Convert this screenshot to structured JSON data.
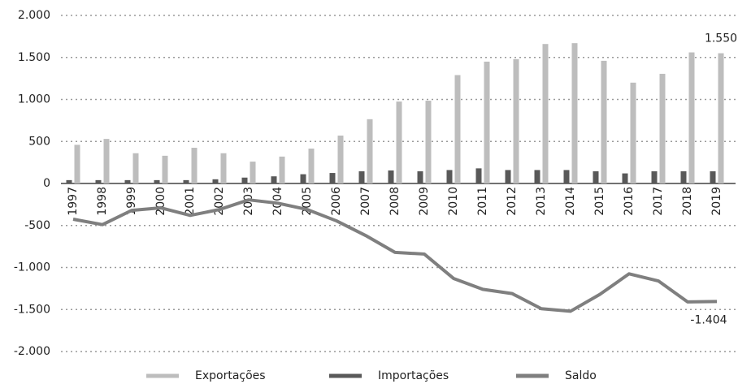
{
  "chart_data": {
    "type": "bar-line",
    "categories": [
      "1997",
      "1998",
      "1999",
      "2000",
      "2001",
      "2002",
      "2003",
      "2004",
      "2005",
      "2006",
      "2007",
      "2008",
      "2009",
      "2010",
      "2011",
      "2012",
      "2013",
      "2014",
      "2015",
      "2016",
      "2017",
      "2018",
      "2019"
    ],
    "series": [
      {
        "name": "Exportações",
        "type": "bar",
        "color": "#bdbdbd",
        "values": [
          460,
          530,
          360,
          330,
          425,
          360,
          260,
          320,
          415,
          570,
          765,
          975,
          985,
          1290,
          1450,
          1480,
          1660,
          1670,
          1460,
          1200,
          1305,
          1560,
          1550
        ],
        "value_labels": [
          null,
          null,
          null,
          null,
          null,
          null,
          null,
          null,
          null,
          null,
          null,
          null,
          null,
          null,
          null,
          null,
          null,
          null,
          null,
          null,
          null,
          null,
          "1.550"
        ]
      },
      {
        "name": "Importações",
        "type": "bar",
        "color": "#595959",
        "values": [
          40,
          40,
          40,
          40,
          40,
          50,
          70,
          85,
          110,
          125,
          145,
          155,
          145,
          160,
          180,
          160,
          160,
          160,
          145,
          120,
          145,
          145,
          145
        ]
      },
      {
        "name": "Saldo",
        "type": "line",
        "color": "#7f7f7f",
        "values": [
          -425,
          -490,
          -320,
          -290,
          -380,
          -310,
          -195,
          -235,
          -310,
          -445,
          -620,
          -820,
          -840,
          -1130,
          -1260,
          -1310,
          -1490,
          -1520,
          -1320,
          -1075,
          -1160,
          -1410,
          -1404
        ],
        "value_labels": [
          null,
          null,
          null,
          null,
          null,
          null,
          null,
          null,
          null,
          null,
          null,
          null,
          null,
          null,
          null,
          null,
          null,
          null,
          null,
          null,
          null,
          null,
          "-1.404"
        ]
      }
    ],
    "ylim": [
      -2000,
      2000
    ],
    "yticks": [
      {
        "value": 2000,
        "label": "2.000"
      },
      {
        "value": 1500,
        "label": "1.500"
      },
      {
        "value": 1000,
        "label": "1.000"
      },
      500,
      0,
      -500,
      {
        "value": -1000,
        "label": "-1.000"
      },
      {
        "value": -1500,
        "label": "-1.500"
      },
      {
        "value": -2000,
        "label": "-2.000"
      }
    ],
    "grid": true,
    "legend": "bottom"
  }
}
